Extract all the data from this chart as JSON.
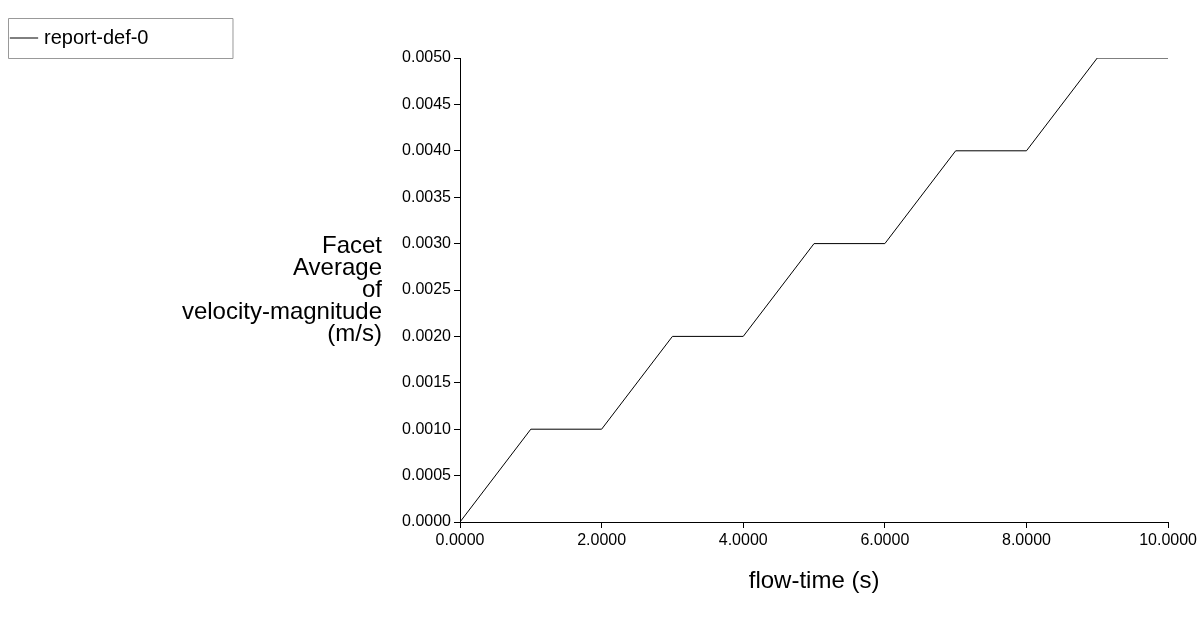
{
  "chart_data": {
    "type": "line",
    "xlabel": "flow-time (s)",
    "ylabel": "Facet Average of velocity-magnitude (m/s)",
    "x": [
      0,
      1,
      2,
      3,
      4,
      5,
      6,
      7,
      8,
      9,
      10
    ],
    "series": [
      {
        "name": "report-def-0",
        "color": "#000000",
        "values": [
          0,
          0.001,
          0.001,
          0.002,
          0.002,
          0.003,
          0.003,
          0.004,
          0.004,
          0.005,
          0.005
        ]
      }
    ],
    "xlim": [
      0,
      10
    ],
    "xticks": [
      {
        "value": 0,
        "label": "0.0000"
      },
      {
        "value": 2,
        "label": "2.0000"
      },
      {
        "value": 4,
        "label": "4.0000"
      },
      {
        "value": 6,
        "label": "6.0000"
      },
      {
        "value": 8,
        "label": "8.0000"
      },
      {
        "value": 10,
        "label": "10.0000"
      }
    ],
    "ylim": [
      0,
      0.005
    ],
    "yticks": [
      {
        "value": 0,
        "label": "0.0000"
      },
      {
        "value": 0.0005,
        "label": "0.0005"
      },
      {
        "value": 0.001,
        "label": "0.0010"
      },
      {
        "value": 0.0015,
        "label": "0.0015"
      },
      {
        "value": 0.002,
        "label": "0.0020"
      },
      {
        "value": 0.0025,
        "label": "0.0025"
      },
      {
        "value": 0.003,
        "label": "0.0030"
      },
      {
        "value": 0.0035,
        "label": "0.0035"
      },
      {
        "value": 0.004,
        "label": "0.0040"
      },
      {
        "value": 0.0045,
        "label": "0.0045"
      },
      {
        "value": 0.005,
        "label": "0.0050"
      }
    ],
    "grid": false,
    "legend": "top left",
    "marker": "none",
    "line_style": "solid"
  }
}
